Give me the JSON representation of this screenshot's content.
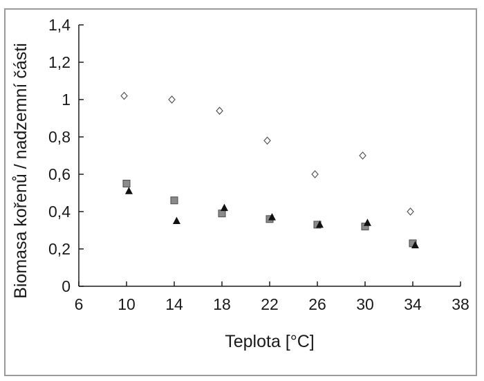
{
  "chart_data": {
    "type": "scatter",
    "xlabel": "Teplota [°C]",
    "ylabel": "Biomasa kořenů / nadzemní části",
    "xlim": [
      6,
      38
    ],
    "ylim": [
      0,
      1.4
    ],
    "x_ticks": [
      "6",
      "10",
      "14",
      "18",
      "22",
      "26",
      "30",
      "34",
      "38"
    ],
    "y_ticks": [
      "0",
      "0,2",
      "0,4",
      "0,6",
      "0,8",
      "1",
      "1,2",
      "1,4"
    ],
    "grid": false,
    "legend": "none",
    "series": [
      {
        "marker": "diamond-open",
        "color": "#555555",
        "points": [
          {
            "x": 9.8,
            "y": 1.02
          },
          {
            "x": 13.8,
            "y": 1.0
          },
          {
            "x": 17.8,
            "y": 0.94
          },
          {
            "x": 21.8,
            "y": 0.78
          },
          {
            "x": 25.8,
            "y": 0.6
          },
          {
            "x": 29.8,
            "y": 0.7
          },
          {
            "x": 33.8,
            "y": 0.4
          }
        ]
      },
      {
        "marker": "square-gray",
        "color": "#8a8a8a",
        "points": [
          {
            "x": 10.0,
            "y": 0.55
          },
          {
            "x": 14.0,
            "y": 0.46
          },
          {
            "x": 18.0,
            "y": 0.39
          },
          {
            "x": 22.0,
            "y": 0.36
          },
          {
            "x": 26.0,
            "y": 0.33
          },
          {
            "x": 30.0,
            "y": 0.32
          },
          {
            "x": 34.0,
            "y": 0.23
          }
        ]
      },
      {
        "marker": "triangle-filled",
        "color": "#111111",
        "points": [
          {
            "x": 10.2,
            "y": 0.51
          },
          {
            "x": 14.2,
            "y": 0.35
          },
          {
            "x": 18.2,
            "y": 0.42
          },
          {
            "x": 22.2,
            "y": 0.37
          },
          {
            "x": 26.2,
            "y": 0.33
          },
          {
            "x": 30.2,
            "y": 0.34
          },
          {
            "x": 34.2,
            "y": 0.22
          }
        ]
      }
    ]
  }
}
